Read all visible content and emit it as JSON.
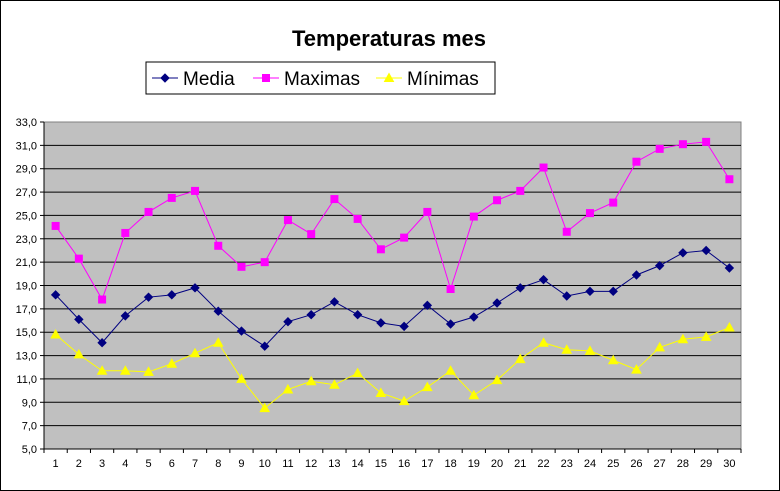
{
  "chart_data": {
    "type": "line",
    "title": "Temperaturas mes",
    "xlabel": "",
    "ylabel": "",
    "x": [
      1,
      2,
      3,
      4,
      5,
      6,
      7,
      8,
      9,
      10,
      11,
      12,
      13,
      14,
      15,
      16,
      17,
      18,
      19,
      20,
      21,
      22,
      23,
      24,
      25,
      26,
      27,
      28,
      29,
      30
    ],
    "y_ticks": [
      "5,0",
      "7,0",
      "9,0",
      "11,0",
      "13,0",
      "15,0",
      "17,0",
      "19,0",
      "21,0",
      "23,0",
      "25,0",
      "27,0",
      "29,0",
      "31,0",
      "33,0"
    ],
    "ylim": [
      5,
      33
    ],
    "grid": true,
    "legend_position": "top",
    "plot_background": "#c0c0c0",
    "series": [
      {
        "name": "Media",
        "color": "#000080",
        "marker": "diamond",
        "values": [
          18.2,
          16.1,
          14.1,
          16.4,
          18.0,
          18.2,
          18.8,
          16.8,
          15.1,
          13.8,
          15.9,
          16.5,
          17.6,
          16.5,
          15.8,
          15.5,
          17.3,
          15.7,
          16.3,
          17.5,
          18.8,
          19.5,
          18.1,
          18.5,
          18.5,
          19.9,
          20.7,
          21.8,
          22.0,
          20.5
        ]
      },
      {
        "name": "Maximas",
        "color": "#ff00ff",
        "marker": "square",
        "values": [
          24.1,
          21.3,
          17.8,
          23.5,
          25.3,
          26.5,
          27.1,
          22.4,
          20.6,
          21.0,
          24.6,
          23.4,
          26.4,
          24.7,
          22.1,
          23.1,
          25.3,
          18.7,
          24.9,
          26.3,
          27.1,
          29.1,
          23.6,
          25.2,
          26.1,
          29.6,
          30.7,
          31.1,
          31.3,
          28.1
        ]
      },
      {
        "name": "Mínimas",
        "color": "#ffff00",
        "marker": "triangle",
        "values": [
          14.8,
          13.1,
          11.7,
          11.7,
          11.6,
          12.3,
          13.2,
          14.1,
          11.0,
          8.5,
          10.1,
          10.8,
          10.5,
          11.5,
          9.8,
          9.1,
          10.3,
          11.7,
          9.6,
          10.9,
          12.7,
          14.1,
          13.5,
          13.4,
          12.6,
          11.8,
          13.7,
          14.4,
          14.6,
          15.4
        ]
      }
    ]
  }
}
